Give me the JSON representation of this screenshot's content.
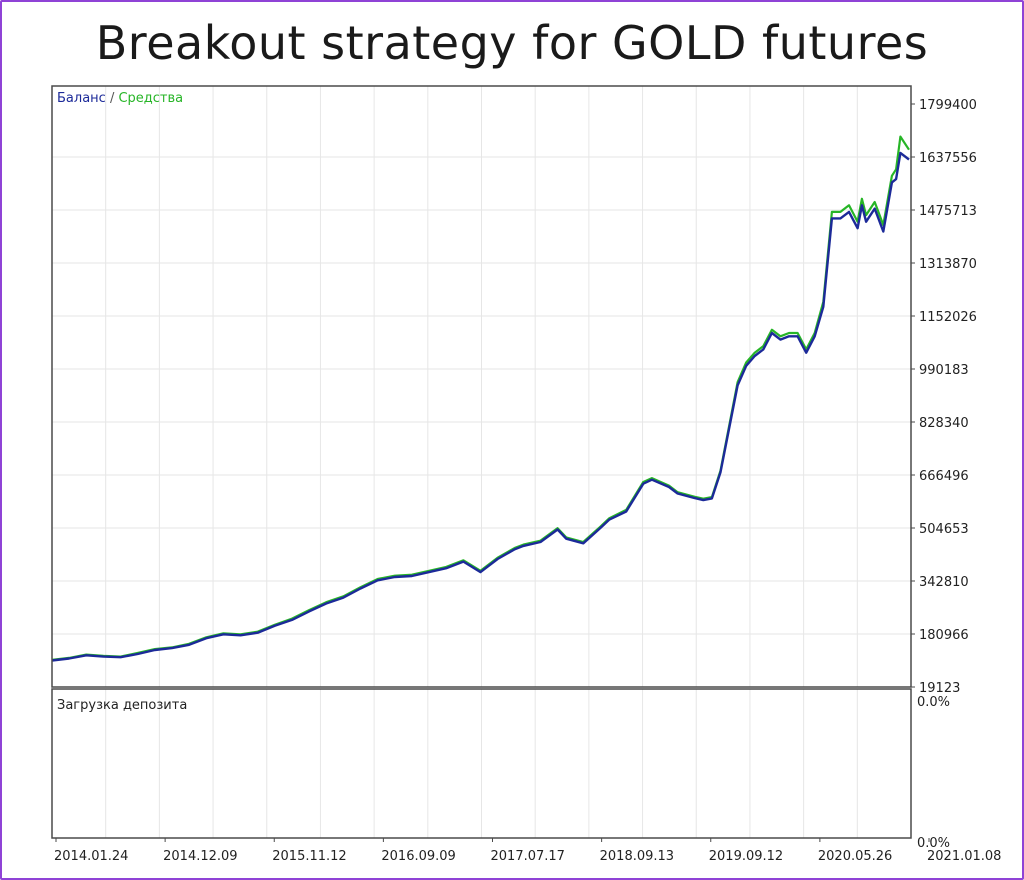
{
  "chart_data": {
    "type": "line",
    "title": "Breakout strategy for GOLD futures",
    "legend": {
      "balance": "Баланс",
      "separator": " / ",
      "equity": "Средства"
    },
    "colors": {
      "balance": "#1c2a99",
      "equity": "#27b527",
      "grid": "#e6e6e6",
      "frame": "#4a4a4a"
    },
    "ylim": [
      19123,
      1799400
    ],
    "y_ticks": [
      "1799400",
      "1637556",
      "1475713",
      "1313870",
      "1152026",
      "990183",
      "828340",
      "666496",
      "504653",
      "342810",
      "180966",
      "19123"
    ],
    "x_ticks": [
      "2014.01.24",
      "2014.12.09",
      "2015.11.12",
      "2016.09.09",
      "2017.07.17",
      "2018.09.13",
      "2019.09.12",
      "2020.05.26",
      "2021.01.08"
    ],
    "series": [
      {
        "name": "Баланс",
        "key": "balance",
        "x": [
          0,
          0.02,
          0.04,
          0.06,
          0.08,
          0.1,
          0.12,
          0.14,
          0.16,
          0.18,
          0.2,
          0.22,
          0.24,
          0.26,
          0.28,
          0.3,
          0.32,
          0.34,
          0.36,
          0.38,
          0.4,
          0.42,
          0.44,
          0.46,
          0.48,
          0.5,
          0.52,
          0.54,
          0.55,
          0.57,
          0.59,
          0.6,
          0.62,
          0.64,
          0.65,
          0.67,
          0.69,
          0.7,
          0.72,
          0.73,
          0.75,
          0.76,
          0.77,
          0.78,
          0.8,
          0.81,
          0.82,
          0.83,
          0.84,
          0.85,
          0.86,
          0.87,
          0.88,
          0.89,
          0.9,
          0.91,
          0.92,
          0.93,
          0.94,
          0.945,
          0.95,
          0.96,
          0.97,
          0.98,
          0.985,
          0.99,
          1.0
        ],
        "values": [
          100000,
          106000,
          116000,
          112000,
          110000,
          120000,
          132000,
          138000,
          148000,
          168000,
          180000,
          177000,
          185000,
          206000,
          224000,
          250000,
          274000,
          292000,
          320000,
          345000,
          355000,
          358000,
          370000,
          382000,
          402000,
          370000,
          410000,
          440000,
          450000,
          462000,
          500000,
          472000,
          458000,
          505000,
          530000,
          555000,
          640000,
          652000,
          630000,
          610000,
          596000,
          590000,
          595000,
          675000,
          940000,
          1000000,
          1030000,
          1050000,
          1100000,
          1080000,
          1090000,
          1090000,
          1040000,
          1090000,
          1180000,
          1450000,
          1450000,
          1470000,
          1420000,
          1490000,
          1440000,
          1480000,
          1410000,
          1560000,
          1570000,
          1650000,
          1630000
        ]
      },
      {
        "name": "Средства",
        "key": "equity",
        "x": [
          0,
          0.02,
          0.04,
          0.06,
          0.08,
          0.1,
          0.12,
          0.14,
          0.16,
          0.18,
          0.2,
          0.22,
          0.24,
          0.26,
          0.28,
          0.3,
          0.32,
          0.34,
          0.36,
          0.38,
          0.4,
          0.42,
          0.44,
          0.46,
          0.48,
          0.5,
          0.52,
          0.54,
          0.55,
          0.57,
          0.59,
          0.6,
          0.62,
          0.64,
          0.65,
          0.67,
          0.69,
          0.7,
          0.72,
          0.73,
          0.75,
          0.76,
          0.77,
          0.78,
          0.8,
          0.81,
          0.82,
          0.83,
          0.84,
          0.85,
          0.86,
          0.87,
          0.88,
          0.89,
          0.9,
          0.91,
          0.92,
          0.93,
          0.94,
          0.945,
          0.95,
          0.96,
          0.97,
          0.98,
          0.985,
          0.99,
          1.0
        ],
        "values": [
          102000,
          108000,
          118000,
          114000,
          112000,
          123000,
          135000,
          140000,
          151000,
          171000,
          183000,
          180000,
          188000,
          209000,
          228000,
          254000,
          278000,
          296000,
          324000,
          349000,
          359000,
          362000,
          374000,
          386000,
          406000,
          374000,
          414000,
          444000,
          454000,
          466000,
          504000,
          476000,
          462000,
          509000,
          534000,
          560000,
          645000,
          657000,
          634000,
          614000,
          600000,
          594000,
          599000,
          680000,
          950000,
          1010000,
          1040000,
          1060000,
          1110000,
          1090000,
          1100000,
          1100000,
          1050000,
          1100000,
          1195000,
          1470000,
          1470000,
          1490000,
          1440000,
          1510000,
          1460000,
          1500000,
          1430000,
          1580000,
          1600000,
          1700000,
          1660000
        ]
      }
    ],
    "sub_panel": {
      "label": "Загрузка депозита",
      "y_ticks": [
        "0.0%",
        "0.0%"
      ]
    },
    "grid": true
  }
}
